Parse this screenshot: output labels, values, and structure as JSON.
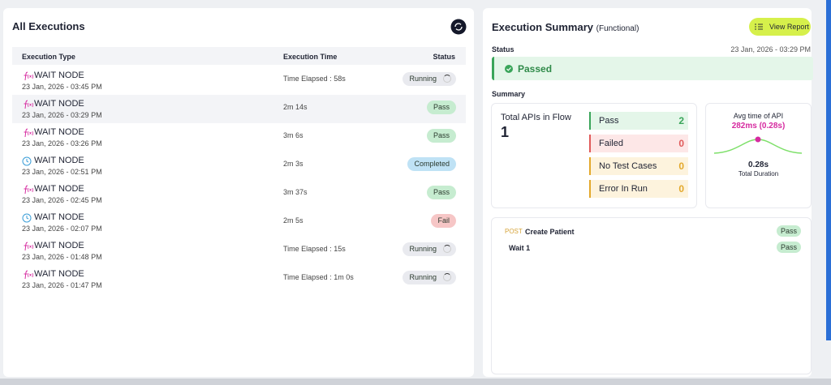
{
  "executions": {
    "title": "All Executions",
    "columns": [
      "Execution Type",
      "Execution Time",
      "Status"
    ],
    "rows": [
      {
        "icon": "fx",
        "type": "WAIT NODE",
        "date": "23 Jan, 2026 - 03:45 PM",
        "time": "Time Elapsed : 58s",
        "status": "Running",
        "color": "#e9eaef",
        "spinner": true
      },
      {
        "icon": "fx",
        "type": "WAIT NODE",
        "date": "23 Jan, 2026 - 03:29 PM",
        "time": "2m 14s",
        "status": "Pass",
        "color": "#c6ecd0"
      },
      {
        "icon": "fx",
        "type": "WAIT NODE",
        "date": "23 Jan, 2026 - 03:26 PM",
        "time": "3m 6s",
        "status": "Pass",
        "color": "#c6ecd0"
      },
      {
        "icon": "clock",
        "type": "WAIT NODE",
        "date": "23 Jan, 2026 - 02:51 PM",
        "time": "2m 3s",
        "status": "Completed",
        "color": "#bfe2f5"
      },
      {
        "icon": "fx",
        "type": "WAIT NODE",
        "date": "23 Jan, 2026 - 02:45 PM",
        "time": "3m 37s",
        "status": "Pass",
        "color": "#c6ecd0"
      },
      {
        "icon": "clock",
        "type": "WAIT NODE",
        "date": "23 Jan, 2026 - 02:07 PM",
        "time": "2m 5s",
        "status": "Fail",
        "color": "#f6c6c6"
      },
      {
        "icon": "fx",
        "type": "WAIT NODE",
        "date": "23 Jan, 2026 - 01:48 PM",
        "time": "Time Elapsed : 15s",
        "status": "Running",
        "color": "#e9eaef",
        "spinner": true
      },
      {
        "icon": "fx",
        "type": "WAIT NODE",
        "date": "23 Jan, 2026 - 01:47 PM",
        "time": "Time Elapsed : 1m 0s",
        "status": "Running",
        "color": "#e9eaef",
        "spinner": true
      }
    ]
  },
  "summary": {
    "title": "Execution Summary",
    "subtitle": "(Functional)",
    "button": "View Report",
    "status_label": "Status",
    "status_date": "23 Jan, 2026 - 03:29 PM",
    "status": "Passed",
    "summary_label": "Summary",
    "total_label": "Total APIs in Flow",
    "total": 1,
    "counts": [
      {
        "label": "Pass",
        "value": 2,
        "bg": "#e4f6e9",
        "accent": "#3aa55a"
      },
      {
        "label": "Failed",
        "value": 0,
        "bg": "#fde7e7",
        "accent": "#e05a5a"
      },
      {
        "label": "No Test Cases",
        "value": 0,
        "bg": "#fdf3dd",
        "accent": "#e3a82b"
      },
      {
        "label": "Error In Run",
        "value": 0,
        "bg": "#fdf3dd",
        "accent": "#e3a82b"
      }
    ],
    "avg_label": "Avg time of API",
    "avg_value": "282ms (0.28s)",
    "duration": "0.28s",
    "duration_label": "Total Duration",
    "steps": [
      {
        "method": "POST",
        "name": "Create Patient",
        "status": "Pass"
      },
      {
        "name": "Wait 1",
        "status": "Pass"
      }
    ]
  }
}
